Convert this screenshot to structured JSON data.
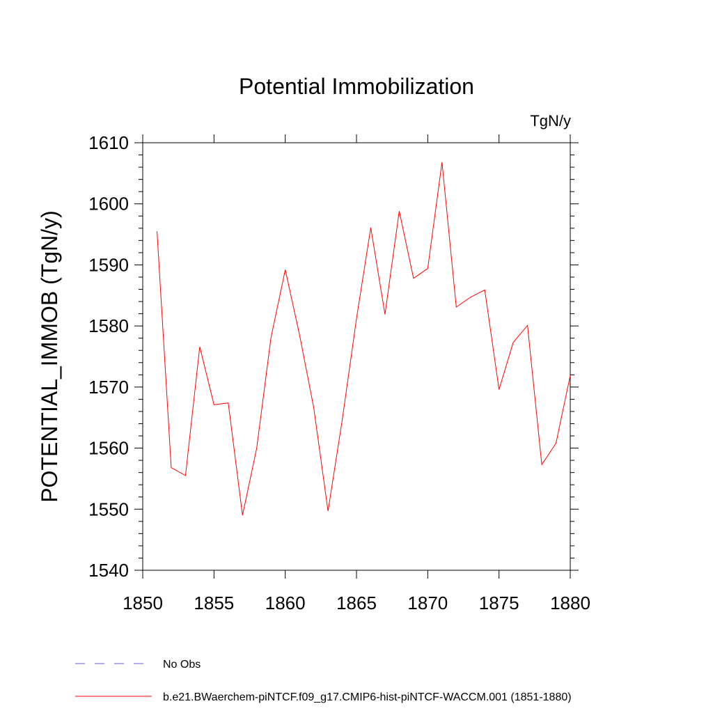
{
  "chart_data": {
    "type": "line",
    "title": "Potential Immobilization",
    "units_label": "TgN/y",
    "xlabel": "",
    "ylabel": "POTENTIAL_IMMOB  (TgN/y)",
    "xlim": [
      1850,
      1880
    ],
    "ylim": [
      1540,
      1610
    ],
    "x_ticks": [
      1850,
      1855,
      1860,
      1865,
      1870,
      1875,
      1880
    ],
    "y_ticks": [
      1540,
      1550,
      1560,
      1570,
      1580,
      1590,
      1600,
      1610
    ],
    "grid": false,
    "legend_position": "bottom-left",
    "series": [
      {
        "name": "b.e21.BWaerchem-piNTCF.f09_g17.CMIP6-hist-piNTCF-WACCM.001 (1851-1880)",
        "color": "#ff0000",
        "x": [
          1851,
          1852,
          1853,
          1854,
          1855,
          1856,
          1857,
          1858,
          1859,
          1860,
          1861,
          1862,
          1863,
          1864,
          1865,
          1866,
          1867,
          1868,
          1869,
          1870,
          1871,
          1872,
          1873,
          1874,
          1875,
          1876,
          1877,
          1878,
          1879,
          1880
        ],
        "values": [
          1595.5,
          1556.8,
          1555.5,
          1576.6,
          1567.1,
          1567.4,
          1549.0,
          1560.0,
          1578.1,
          1589.2,
          1578.6,
          1566.6,
          1549.7,
          1564.6,
          1581.2,
          1596.1,
          1581.9,
          1598.8,
          1587.8,
          1589.4,
          1606.8,
          1583.1,
          1584.7,
          1585.9,
          1569.6,
          1577.3,
          1580.1,
          1557.3,
          1560.8,
          1571.9
        ]
      }
    ],
    "legend": [
      {
        "label": "No Obs",
        "color": "#6a5acd",
        "style": "dashed"
      },
      {
        "label": "b.e21.BWaerchem-piNTCF.f09_g17.CMIP6-hist-piNTCF-WACCM.001 (1851-1880)",
        "color": "#ff0000",
        "style": "solid"
      }
    ]
  }
}
